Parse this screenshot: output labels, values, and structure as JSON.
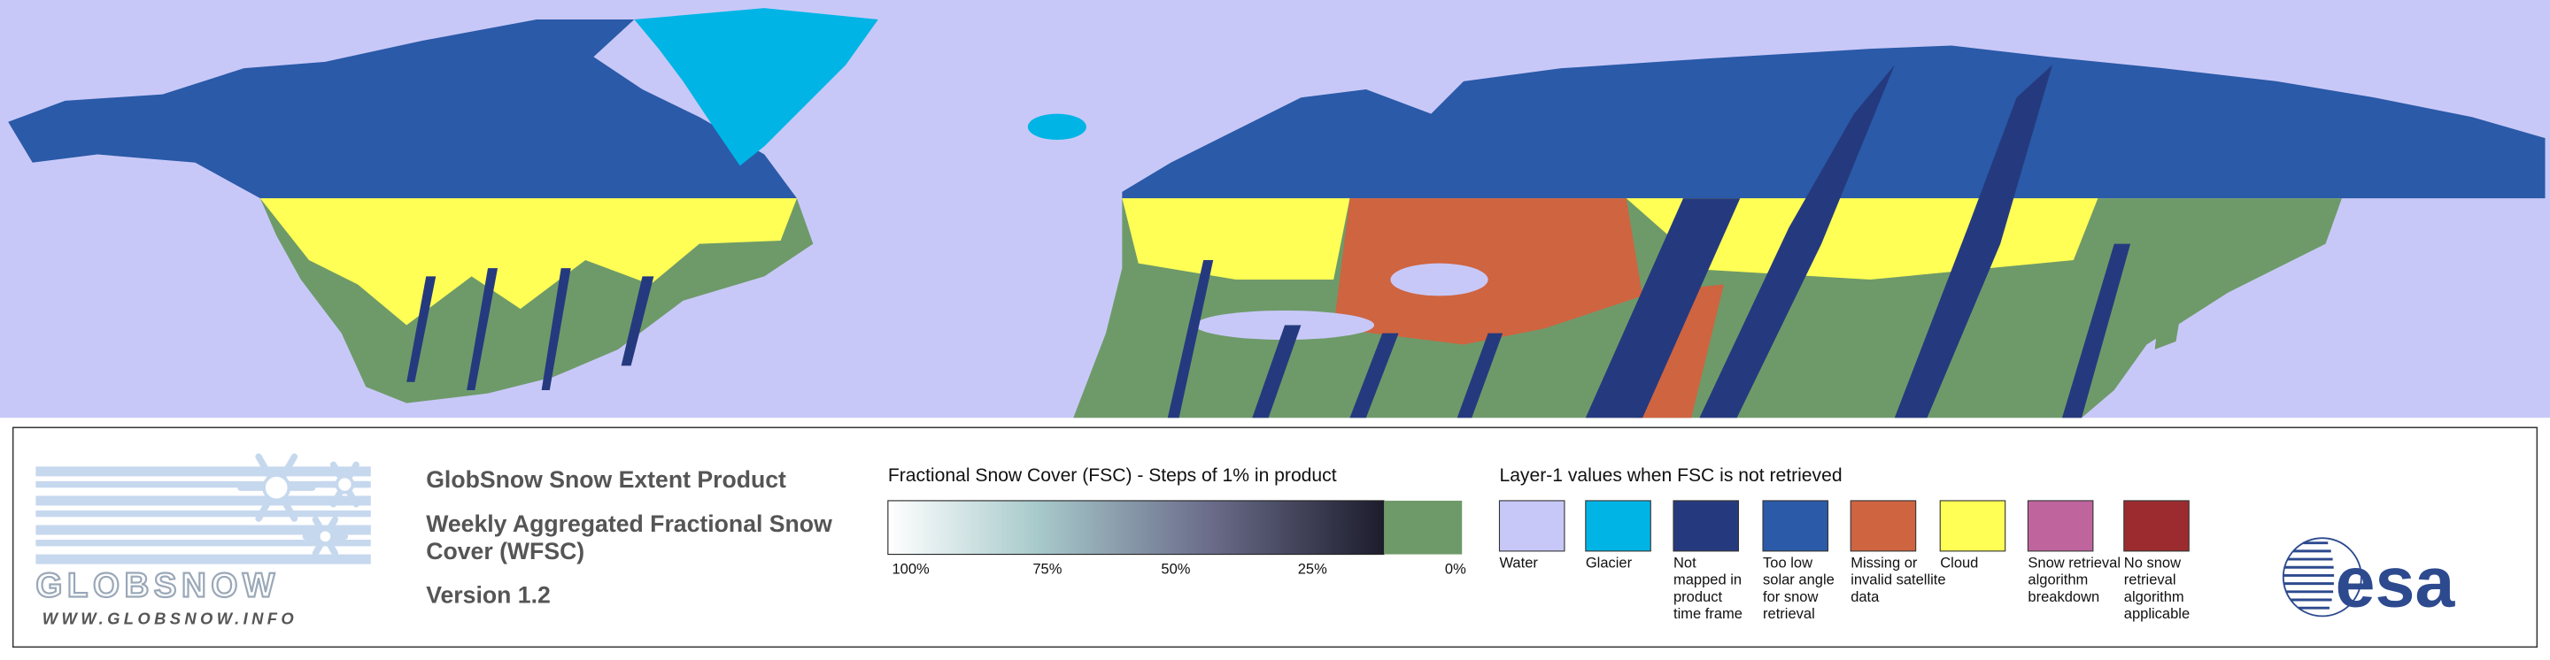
{
  "logo": {
    "name": "GLOBSNOW",
    "url": "WWW.GLOBSNOW.INFO"
  },
  "product": {
    "title": "GlobSnow Snow Extent Product",
    "subtitle_lines": [
      "Weekly Aggregated Fractional Snow",
      "Cover (WFSC)"
    ],
    "version": "Version 1.2"
  },
  "fsc_legend": {
    "title": "Fractional Snow Cover (FSC) - Steps of 1% in product",
    "ticks": [
      "100%",
      "75%",
      "50%",
      "25%",
      "0%"
    ]
  },
  "layer1_legend": {
    "title": "Layer-1 values when FSC is not retrieved",
    "items": [
      {
        "label_lines": [
          "Water"
        ],
        "color": "#c8c8f8"
      },
      {
        "label_lines": [
          "Glacier"
        ],
        "color": "#00b4e6"
      },
      {
        "label_lines": [
          "Not",
          "mapped in",
          "product",
          "time frame"
        ],
        "color": "#253a7e"
      },
      {
        "label_lines": [
          "Too low",
          "solar angle",
          "for snow",
          "retrieval"
        ],
        "color": "#2a5aa8"
      },
      {
        "label_lines": [
          "Missing or",
          "invalid satellite",
          "data"
        ],
        "color": "#cf6440"
      },
      {
        "label_lines": [
          "Cloud"
        ],
        "color": "#ffff55"
      },
      {
        "label_lines": [
          "Snow retrieval",
          "algorithm",
          "breakdown"
        ],
        "color": "#c0649e"
      },
      {
        "label_lines": [
          "No snow",
          "retrieval",
          "algorithm",
          "applicable"
        ],
        "color": "#9b2b2f"
      }
    ]
  },
  "agency_logo": "esa"
}
